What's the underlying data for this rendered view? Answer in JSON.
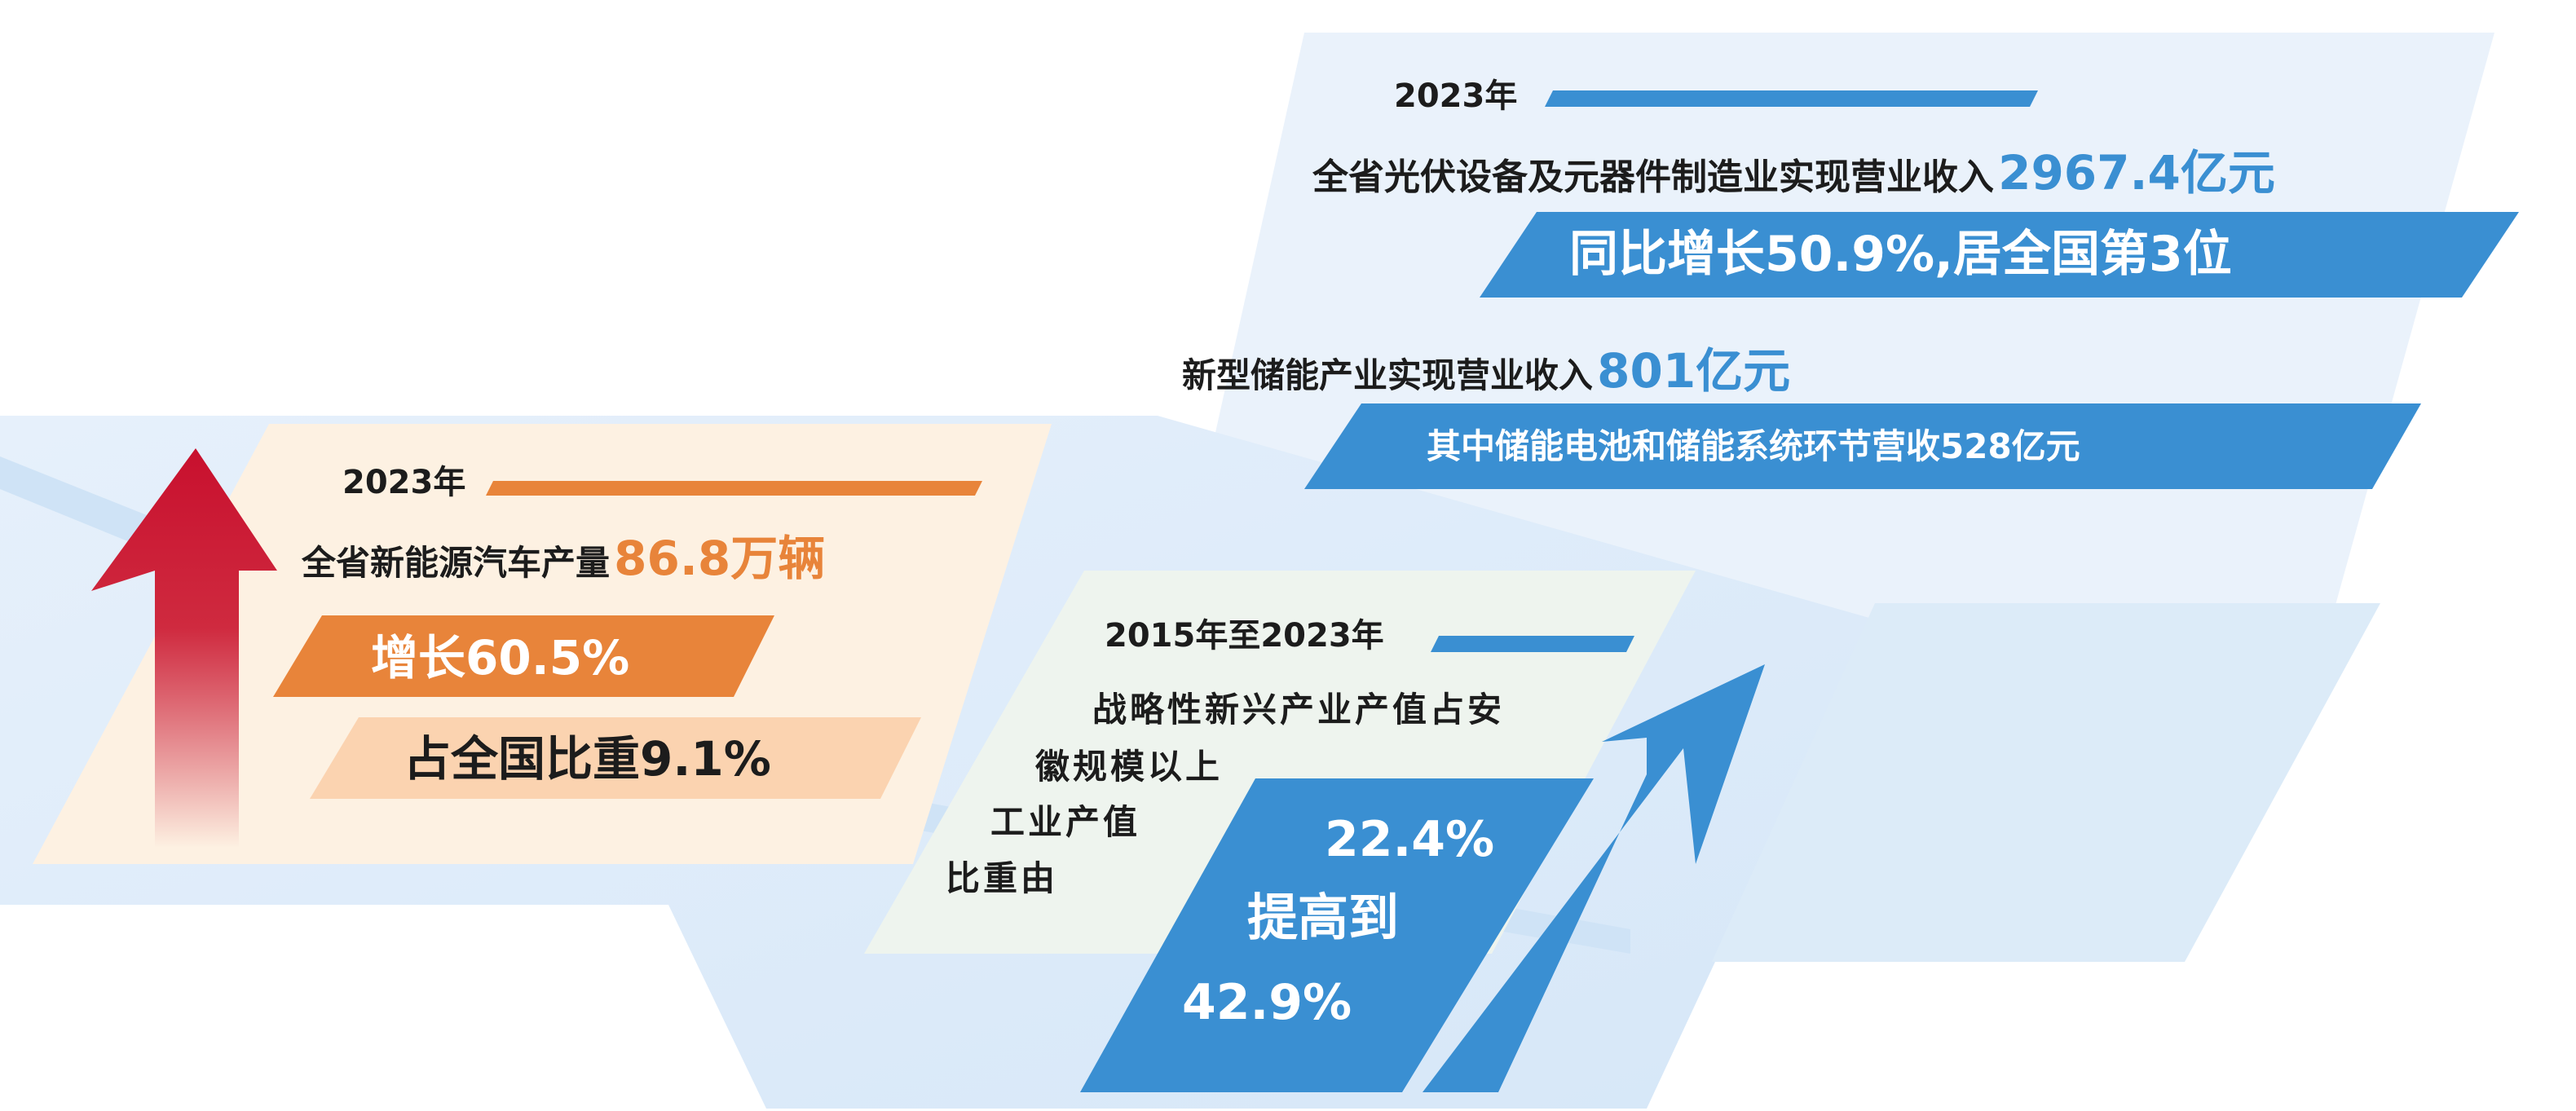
{
  "colors": {
    "accent_blue": "#3a8fd2",
    "accent_orange": "#e8843a",
    "light_orange": "#fbd3b0",
    "arrow_red": "#c8102e",
    "panel_cream": "#fdf1e2",
    "panel_sky": "#e3eefa",
    "panel_mint": "#eef4ee"
  },
  "ev_block": {
    "year": "2023年",
    "line1_text": "全省新能源汽车产量",
    "line1_value": "86.8万辆",
    "growth": "增长60.5%",
    "share": "占全国比重9.1%",
    "icon": "up-arrow-icon"
  },
  "pv_block": {
    "year": "2023年",
    "line1_text": "全省光伏设备及元器件制造业实现营业收入",
    "line1_value": "2967.4亿元",
    "growth_rank": "同比增长50.9%,居全国第3位",
    "storage_text": "新型储能产业实现营业收入",
    "storage_value": "801亿元",
    "storage_detail": "其中储能电池和储能系统环节营收528亿元"
  },
  "strategic_block": {
    "period": "2015年至2023年",
    "desc_line1": "战略性新兴产业产值占安",
    "desc_line2": "徽规模以上",
    "desc_line3": "工业产值",
    "desc_line4": "比重由",
    "from_value": "22.4%",
    "raise_label": "提高到",
    "to_value": "42.9%",
    "icon": "growth-arrow-icon"
  }
}
